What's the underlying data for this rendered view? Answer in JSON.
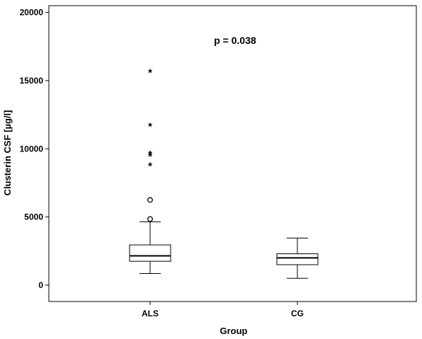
{
  "chart_data": {
    "type": "boxplot",
    "xlabel": "Group",
    "ylabel": "Clusterin CSF [µg/l]",
    "ylim": [
      -1200,
      20500
    ],
    "yticks": [
      0,
      5000,
      10000,
      15000,
      20000
    ],
    "annotation": "p = 0.038",
    "groups": [
      {
        "name": "ALS",
        "whisker_low": 850,
        "q1": 1750,
        "median": 2150,
        "q3": 2950,
        "whisker_high": 4650,
        "outliers": [
          4850,
          6250
        ],
        "extremes": [
          8800,
          9500,
          9650,
          11700,
          15650
        ]
      },
      {
        "name": "CG",
        "whisker_low": 500,
        "q1": 1500,
        "median": 2000,
        "q3": 2300,
        "whisker_high": 3450,
        "outliers": [],
        "extremes": []
      }
    ]
  }
}
